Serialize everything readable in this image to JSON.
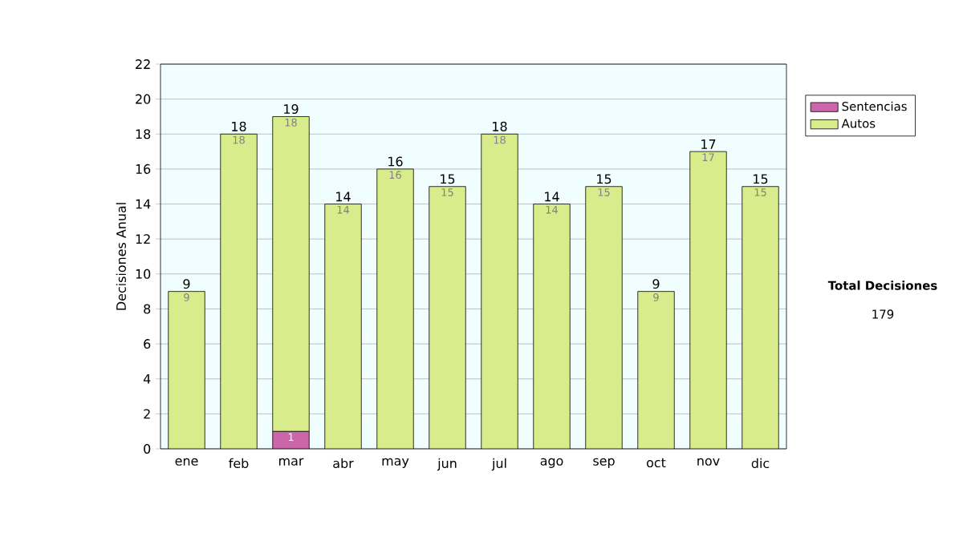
{
  "chart_data": {
    "type": "bar",
    "stacked": true,
    "ylabel": "Decisiones Anual",
    "categories": [
      "ene",
      "feb",
      "mar",
      "abr",
      "may",
      "jun",
      "jul",
      "ago",
      "sep",
      "oct",
      "nov",
      "dic"
    ],
    "series": [
      {
        "name": "Sentencias",
        "color": "#cc66aa",
        "values": [
          null,
          null,
          1,
          null,
          null,
          null,
          null,
          null,
          null,
          null,
          null,
          null
        ]
      },
      {
        "name": "Autos",
        "color": "#d9ec8c",
        "values": [
          9,
          18,
          18,
          14,
          16,
          15,
          18,
          14,
          15,
          9,
          17,
          15
        ]
      }
    ],
    "totals": [
      "9",
      "18",
      "19",
      "14",
      "16",
      "15",
      "18",
      "14",
      "15",
      "9",
      "17",
      "15"
    ],
    "data_labels": true,
    "ylim": [
      0,
      22
    ],
    "yticks": [
      0,
      2,
      4,
      6,
      8,
      10,
      12,
      14,
      16,
      18,
      20,
      22
    ],
    "grid": "y",
    "legend": "right",
    "annotations": [
      "Total Decisiones",
      "179"
    ]
  }
}
